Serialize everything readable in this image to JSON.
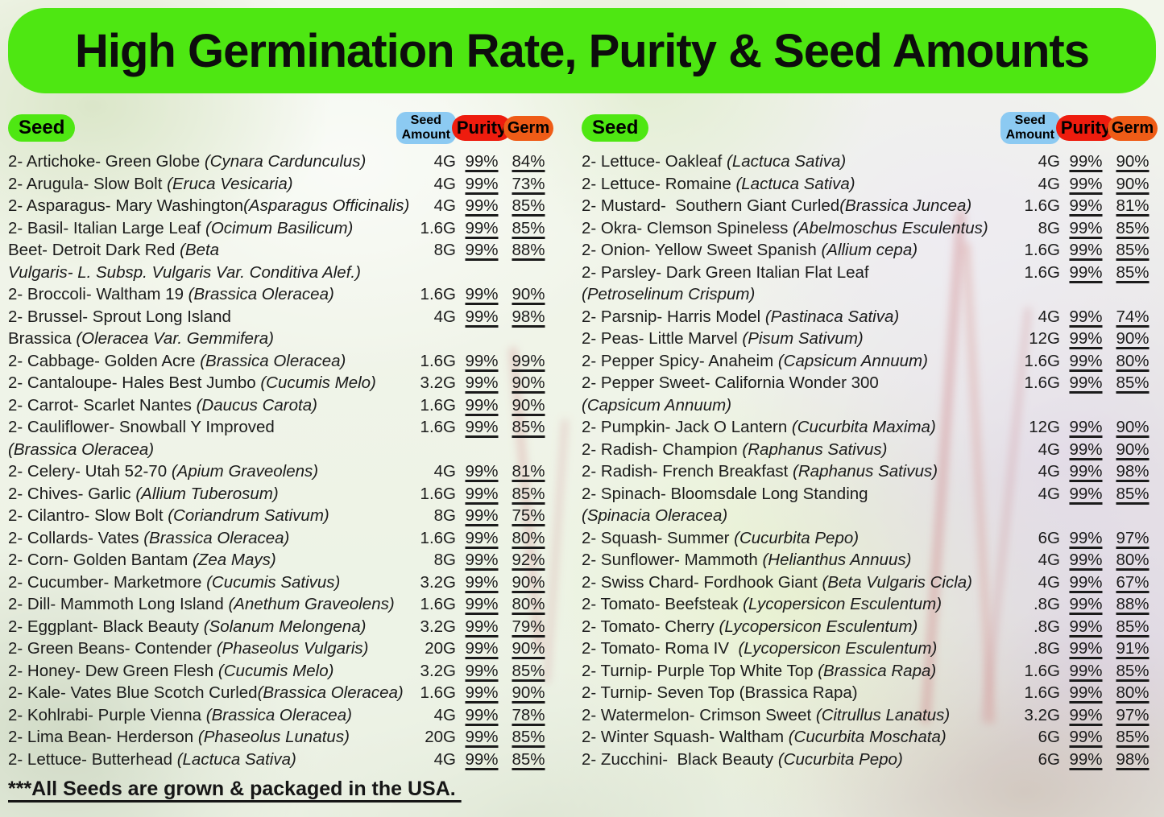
{
  "title": "High Germination Rate, Purity & Seed Amounts",
  "footer": {
    "note": "***All Seeds are grown & packaged in the USA. "
  },
  "colors": {
    "banner_green": "#4ee712",
    "seed_pill_green": "#4ee712",
    "amount_pill_blue": "#8ccaf2",
    "purity_pill_red": "#ee1c0e",
    "germ_pill_orange": "#ef5c17",
    "text": "#1b1b1b"
  },
  "table": {
    "headers": {
      "seed": "Seed",
      "amount": "Seed\nAmount",
      "purity": "Purity",
      "germ": "Germ"
    },
    "left": [
      {
        "segs": [
          [
            "2- Artichoke- Green Globe ",
            0
          ],
          [
            "(Cynara Cardunculus)",
            1
          ]
        ],
        "amount": "4G",
        "purity": "99%",
        "germ": "84%"
      },
      {
        "segs": [
          [
            "2- Arugula- Slow Bolt ",
            0
          ],
          [
            "(Eruca Vesicaria)",
            1
          ]
        ],
        "amount": "4G",
        "purity": "99%",
        "germ": "73%"
      },
      {
        "segs": [
          [
            "2- Asparagus- Mary Washington",
            0
          ],
          [
            "(Asparagus Officinalis)",
            1
          ]
        ],
        "amount": "4G",
        "purity": "99%",
        "germ": "85%"
      },
      {
        "segs": [
          [
            "2- Basil- Italian Large Leaf ",
            0
          ],
          [
            "(Ocimum Basilicum)",
            1
          ]
        ],
        "amount": "1.6G",
        "purity": "99%",
        "germ": "85%"
      },
      {
        "segs": [
          [
            "Beet- Detroit Dark Red ",
            0
          ],
          [
            "(Beta\nVulgaris- L. Subsp. Vulgaris Var. Conditiva Alef.)",
            1
          ]
        ],
        "amount": "8G",
        "purity": "99%",
        "germ": "88%"
      },
      {
        "segs": [
          [
            "2- Broccoli- Waltham 19 ",
            0
          ],
          [
            "(Brassica Oleracea)",
            1
          ]
        ],
        "amount": "1.6G",
        "purity": "99%",
        "germ": "90%"
      },
      {
        "segs": [
          [
            "2- Brussel- Sprout Long Island\nBrassica ",
            0
          ],
          [
            "(Oleracea Var. Gemmifera)",
            1
          ]
        ],
        "amount": "4G",
        "purity": "99%",
        "germ": "98%"
      },
      {
        "segs": [
          [
            "2- Cabbage- Golden Acre ",
            0
          ],
          [
            "(Brassica Oleracea)",
            1
          ]
        ],
        "amount": "1.6G",
        "purity": "99%",
        "germ": "99%"
      },
      {
        "segs": [
          [
            "2- Cantaloupe- Hales Best Jumbo ",
            0
          ],
          [
            "(Cucumis Melo)",
            1
          ]
        ],
        "amount": "3.2G",
        "purity": "99%",
        "germ": "90%"
      },
      {
        "segs": [
          [
            "2- Carrot- Scarlet Nantes ",
            0
          ],
          [
            "(Daucus Carota)",
            1
          ]
        ],
        "amount": "1.6G",
        "purity": "99%",
        "germ": "90%"
      },
      {
        "segs": [
          [
            "2- Cauliflower- Snowball Y Improved\n",
            0
          ],
          [
            "(Brassica Oleracea)",
            1
          ]
        ],
        "amount": "1.6G",
        "purity": "99%",
        "germ": "85%"
      },
      {
        "segs": [
          [
            "2- Celery- Utah 52-70 ",
            0
          ],
          [
            "(Apium Graveolens)",
            1
          ]
        ],
        "amount": "4G",
        "purity": "99%",
        "germ": "81%"
      },
      {
        "segs": [
          [
            "2- Chives- Garlic ",
            0
          ],
          [
            "(Allium Tuberosum)",
            1
          ]
        ],
        "amount": "1.6G",
        "purity": "99%",
        "germ": "85%"
      },
      {
        "segs": [
          [
            "2- Cilantro- Slow Bolt ",
            0
          ],
          [
            "(Coriandrum Sativum)",
            1
          ]
        ],
        "amount": "8G",
        "purity": "99%",
        "germ": "75%"
      },
      {
        "segs": [
          [
            "2- Collards- Vates ",
            0
          ],
          [
            "(Brassica Oleracea)",
            1
          ]
        ],
        "amount": "1.6G",
        "purity": "99%",
        "germ": "80%"
      },
      {
        "segs": [
          [
            "2- Corn- Golden Bantam ",
            0
          ],
          [
            "(Zea Mays)",
            1
          ]
        ],
        "amount": "8G",
        "purity": "99%",
        "germ": "92%"
      },
      {
        "segs": [
          [
            "2- Cucumber- Marketmore ",
            0
          ],
          [
            "(Cucumis Sativus)",
            1
          ]
        ],
        "amount": "3.2G",
        "purity": "99%",
        "germ": "90%"
      },
      {
        "segs": [
          [
            "2- Dill- Mammoth Long Island ",
            0
          ],
          [
            "(Anethum Graveolens)",
            1
          ]
        ],
        "amount": "1.6G",
        "purity": "99%",
        "germ": "80%"
      },
      {
        "segs": [
          [
            "2- Eggplant- Black Beauty ",
            0
          ],
          [
            "(Solanum Melongena)",
            1
          ]
        ],
        "amount": "3.2G",
        "purity": "99%",
        "germ": "79%"
      },
      {
        "segs": [
          [
            "2- Green Beans- Contender ",
            0
          ],
          [
            "(Phaseolus Vulgaris)",
            1
          ]
        ],
        "amount": "20G",
        "purity": "99%",
        "germ": "90%"
      },
      {
        "segs": [
          [
            "2- Honey- Dew Green Flesh ",
            0
          ],
          [
            "(Cucumis Melo)",
            1
          ]
        ],
        "amount": "3.2G",
        "purity": "99%",
        "germ": "85%"
      },
      {
        "segs": [
          [
            "2- Kale- Vates Blue Scotch Curled",
            0
          ],
          [
            "(Brassica Oleracea)",
            1
          ]
        ],
        "amount": "1.6G",
        "purity": "99%",
        "germ": "90%"
      },
      {
        "segs": [
          [
            "2- Kohlrabi- Purple Vienna ",
            0
          ],
          [
            "(Brassica Oleracea)",
            1
          ]
        ],
        "amount": "4G",
        "purity": "99%",
        "germ": "78%"
      },
      {
        "segs": [
          [
            "2- Lima Bean- Herderson ",
            0
          ],
          [
            "(Phaseolus Lunatus)",
            1
          ]
        ],
        "amount": "20G",
        "purity": "99%",
        "germ": "85%"
      },
      {
        "segs": [
          [
            "2- Lettuce- Butterhead ",
            0
          ],
          [
            "(Lactuca Sativa)",
            1
          ]
        ],
        "amount": "4G",
        "purity": "99%",
        "germ": "85%"
      }
    ],
    "right": [
      {
        "segs": [
          [
            "2- Lettuce- Oakleaf ",
            0
          ],
          [
            "(Lactuca Sativa)",
            1
          ]
        ],
        "amount": "4G",
        "purity": "99%",
        "germ": "90%"
      },
      {
        "segs": [
          [
            "2- Lettuce- Romaine ",
            0
          ],
          [
            "(Lactuca Sativa)",
            1
          ]
        ],
        "amount": "4G",
        "purity": "99%",
        "germ": "90%"
      },
      {
        "segs": [
          [
            "2- Mustard-  Southern Giant Curled",
            0
          ],
          [
            "(Brassica Juncea)",
            1
          ]
        ],
        "amount": "1.6G",
        "purity": "99%",
        "germ": "81%"
      },
      {
        "segs": [
          [
            "2- Okra- Clemson Spineless ",
            0
          ],
          [
            "(Abelmoschus Esculentus)",
            1
          ]
        ],
        "amount": "8G",
        "purity": "99%",
        "germ": "85%"
      },
      {
        "segs": [
          [
            "2- Onion- Yellow Sweet Spanish ",
            0
          ],
          [
            "(Allium cepa)",
            1
          ]
        ],
        "amount": "1.6G",
        "purity": "99%",
        "germ": "85%"
      },
      {
        "segs": [
          [
            "2- Parsley- Dark Green Italian Flat Leaf\n",
            0
          ],
          [
            "(Petroselinum Crispum)",
            1
          ]
        ],
        "amount": "1.6G",
        "purity": "99%",
        "germ": "85%"
      },
      {
        "segs": [
          [
            "2- Parsnip- Harris Model ",
            0
          ],
          [
            "(Pastinaca Sativa)",
            1
          ]
        ],
        "amount": "4G",
        "purity": "99%",
        "germ": "74%"
      },
      {
        "segs": [
          [
            "2- Peas- Little Marvel ",
            0
          ],
          [
            "(Pisum Sativum)",
            1
          ]
        ],
        "amount": "12G",
        "purity": "99%",
        "germ": "90%"
      },
      {
        "segs": [
          [
            "2- Pepper Spicy- Anaheim ",
            0
          ],
          [
            "(Capsicum Annuum)",
            1
          ]
        ],
        "amount": "1.6G",
        "purity": "99%",
        "germ": "80%"
      },
      {
        "segs": [
          [
            "2- Pepper Sweet- California Wonder 300\n",
            0
          ],
          [
            "(Capsicum Annuum)",
            1
          ]
        ],
        "amount": "1.6G",
        "purity": "99%",
        "germ": "85%"
      },
      {
        "segs": [
          [
            "2- Pumpkin- Jack O Lantern ",
            0
          ],
          [
            "(Cucurbita Maxima)",
            1
          ]
        ],
        "amount": "12G",
        "purity": "99%",
        "germ": "90%"
      },
      {
        "segs": [
          [
            "2- Radish- Champion ",
            0
          ],
          [
            "(Raphanus Sativus)",
            1
          ]
        ],
        "amount": "4G",
        "purity": "99%",
        "germ": "90%"
      },
      {
        "segs": [
          [
            "2- Radish- French Breakfast ",
            0
          ],
          [
            "(Raphanus Sativus)",
            1
          ]
        ],
        "amount": "4G",
        "purity": "99%",
        "germ": "98%"
      },
      {
        "segs": [
          [
            "2- Spinach- Bloomsdale Long Standing\n",
            0
          ],
          [
            "(Spinacia Oleracea)",
            1
          ]
        ],
        "amount": "4G",
        "purity": "99%",
        "germ": "85%"
      },
      {
        "segs": [
          [
            "2- Squash- Summer ",
            0
          ],
          [
            "(Cucurbita Pepo)",
            1
          ]
        ],
        "amount": "6G",
        "purity": "99%",
        "germ": "97%"
      },
      {
        "segs": [
          [
            "2- Sunflower- Mammoth ",
            0
          ],
          [
            "(Helianthus Annuus)",
            1
          ]
        ],
        "amount": "4G",
        "purity": "99%",
        "germ": "80%"
      },
      {
        "segs": [
          [
            "2- Swiss Chard- Fordhook Giant ",
            0
          ],
          [
            "(Beta Vulgaris Cicla)",
            1
          ]
        ],
        "amount": "4G",
        "purity": "99%",
        "germ": "67%"
      },
      {
        "segs": [
          [
            "2- Tomato- Beefsteak ",
            0
          ],
          [
            "(Lycopersicon Esculentum)",
            1
          ]
        ],
        "amount": ".8G",
        "purity": "99%",
        "germ": "88%"
      },
      {
        "segs": [
          [
            "2- Tomato- Cherry ",
            0
          ],
          [
            "(Lycopersicon Esculentum)",
            1
          ]
        ],
        "amount": ".8G",
        "purity": "99%",
        "germ": "85%"
      },
      {
        "segs": [
          [
            "2- Tomato- Roma IV  ",
            0
          ],
          [
            "(Lycopersicon Esculentum)",
            1
          ]
        ],
        "amount": ".8G",
        "purity": "99%",
        "germ": "91%"
      },
      {
        "segs": [
          [
            "2- Turnip- Purple Top White Top ",
            0
          ],
          [
            "(Brassica Rapa)",
            1
          ]
        ],
        "amount": "1.6G",
        "purity": "99%",
        "germ": "85%"
      },
      {
        "segs": [
          [
            "2- Turnip- Seven Top (Brassica Rapa)",
            0
          ]
        ],
        "amount": "1.6G",
        "purity": "99%",
        "germ": "80%"
      },
      {
        "segs": [
          [
            "2- Watermelon- Crimson Sweet ",
            0
          ],
          [
            "(Citrullus Lanatus)",
            1
          ]
        ],
        "amount": "3.2G",
        "purity": "99%",
        "germ": "97%"
      },
      {
        "segs": [
          [
            "2- Winter Squash- Waltham ",
            0
          ],
          [
            "(Cucurbita Moschata)",
            1
          ]
        ],
        "amount": "6G",
        "purity": "99%",
        "germ": "85%"
      },
      {
        "segs": [
          [
            "2- Zucchini-  Black Beauty ",
            0
          ],
          [
            "(Cucurbita Pepo)",
            1
          ]
        ],
        "amount": "6G",
        "purity": "99%",
        "germ": "98%"
      }
    ]
  }
}
